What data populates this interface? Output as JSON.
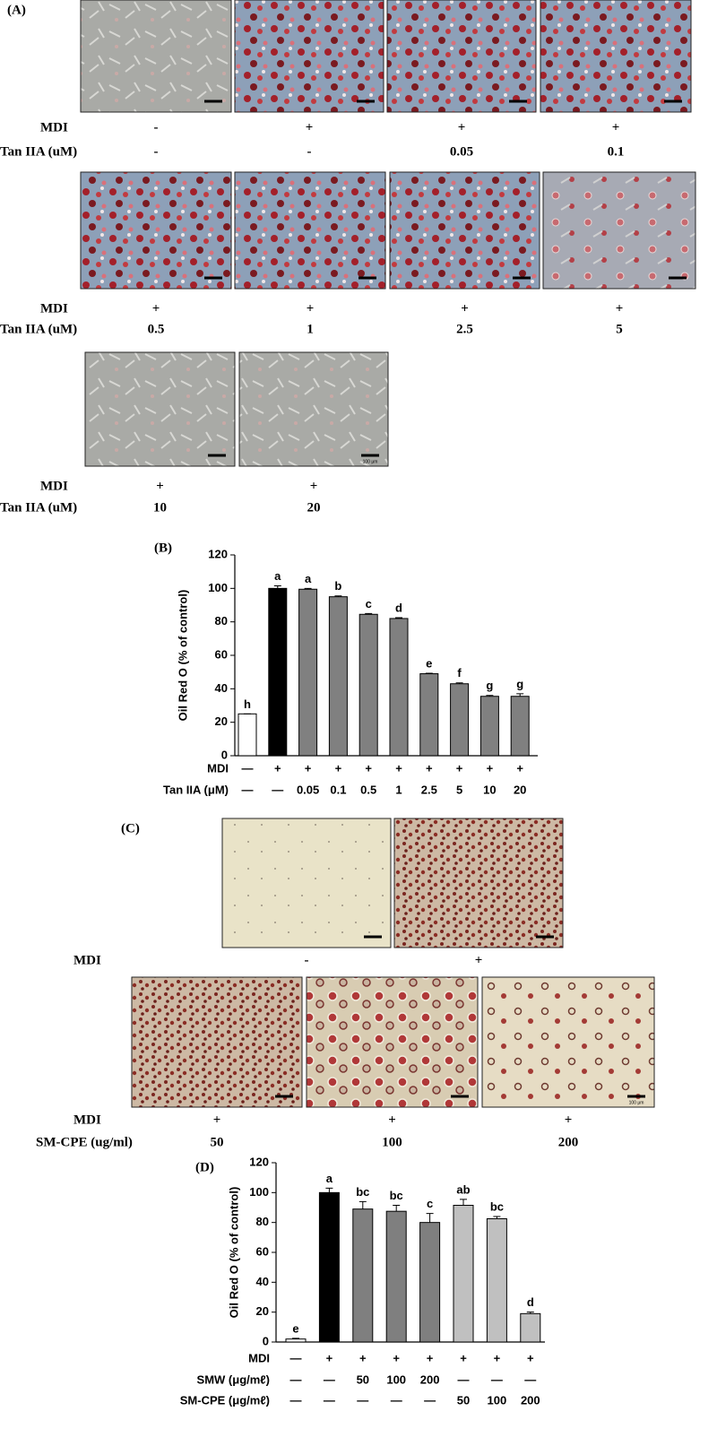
{
  "panel_a": {
    "label": "(A)",
    "row_labels": [
      "MDI",
      "Tan IIA (uM)"
    ],
    "mdi": [
      "-",
      "+",
      "+",
      "+",
      "+",
      "+",
      "+",
      "+",
      "+",
      "+"
    ],
    "dose": [
      "-",
      "-",
      "0.05",
      "0.1",
      "0.5",
      "1",
      "2.5",
      "5",
      "10",
      "20"
    ],
    "scale_label": "100 μm"
  },
  "chart_data": [
    {
      "type": "bar",
      "panel_label": "(B)",
      "ylabel": "Oil Red O (% of control)",
      "values": [
        25,
        100,
        99.5,
        95,
        84.5,
        82,
        49,
        43,
        35.5,
        35.5
      ],
      "errors": [
        0,
        1.5,
        0.5,
        0.5,
        0.5,
        0.5,
        0.3,
        0.5,
        0.5,
        1.5
      ],
      "letters": [
        "h",
        "a",
        "a",
        "b",
        "c",
        "d",
        "e",
        "f",
        "g",
        "g"
      ],
      "colors": [
        "#ffffff",
        "#000000",
        "#808080",
        "#808080",
        "#808080",
        "#808080",
        "#808080",
        "#808080",
        "#808080",
        "#808080"
      ],
      "ylim": [
        0,
        120
      ],
      "yticks": [
        0,
        20,
        40,
        60,
        80,
        100,
        120
      ],
      "grid": false,
      "rows": [
        {
          "label": "MDI",
          "values": [
            "—",
            "+",
            "+",
            "+",
            "+",
            "+",
            "+",
            "+",
            "+",
            "+"
          ]
        },
        {
          "label": "Tan IIA (μM)",
          "values": [
            "—",
            "—",
            "0.05",
            "0.1",
            "0.5",
            "1",
            "2.5",
            "5",
            "10",
            "20"
          ]
        }
      ]
    },
    {
      "type": "bar",
      "panel_label": "(D)",
      "ylabel": "Oil Red O (% of control)",
      "values": [
        2,
        100,
        89,
        87.5,
        80,
        91.5,
        82.5,
        19
      ],
      "errors": [
        0.5,
        3,
        5,
        4,
        6,
        4,
        1.5,
        1
      ],
      "letters": [
        "e",
        "a",
        "bc",
        "bc",
        "c",
        "ab",
        "bc",
        "d"
      ],
      "colors": [
        "#ffffff",
        "#000000",
        "#7f7f7f",
        "#7f7f7f",
        "#7f7f7f",
        "#c0c0c0",
        "#c0c0c0",
        "#c0c0c0"
      ],
      "ylim": [
        0,
        120
      ],
      "yticks": [
        0,
        20,
        40,
        60,
        80,
        100,
        120
      ],
      "grid": false,
      "rows": [
        {
          "label": "MDI",
          "values": [
            "—",
            "+",
            "+",
            "+",
            "+",
            "+",
            "+",
            "+"
          ]
        },
        {
          "label": "SMW (μg/mℓ)",
          "values": [
            "—",
            "—",
            "50",
            "100",
            "200",
            "—",
            "—",
            "—"
          ]
        },
        {
          "label": "SM-CPE (μg/mℓ)",
          "values": [
            "—",
            "—",
            "—",
            "—",
            "—",
            "50",
            "100",
            "200"
          ]
        }
      ]
    }
  ],
  "panel_c": {
    "label": "(C)",
    "row_labels": [
      "MDI",
      "SM-CPE (ug/ml)"
    ],
    "top_mdi": [
      "-",
      "+"
    ],
    "bottom_mdi": [
      "+",
      "+",
      "+"
    ],
    "bottom_dose": [
      "50",
      "100",
      "200"
    ],
    "scale_label": "100 μm"
  }
}
